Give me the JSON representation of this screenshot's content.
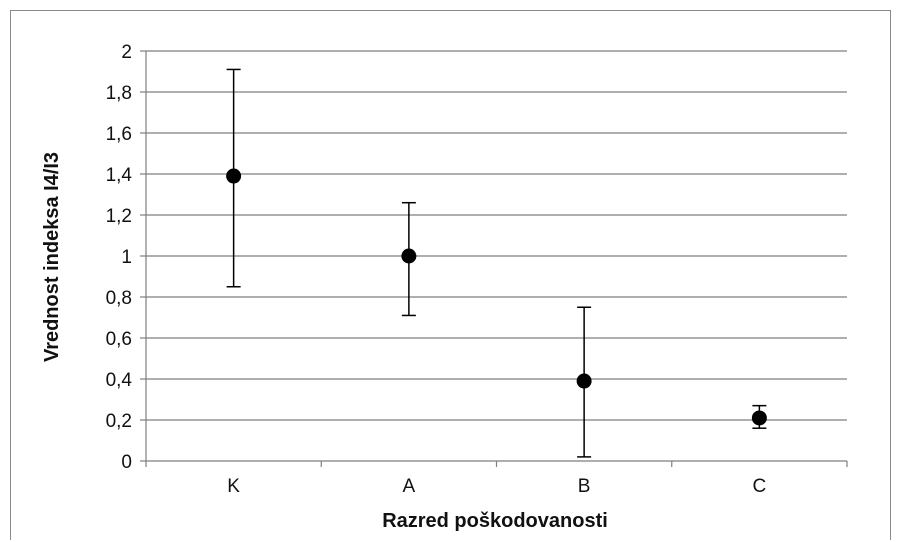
{
  "chart_data": {
    "type": "scatter",
    "title": "",
    "xlabel": "Razred poškodovanosti",
    "ylabel": "Vrednost indeksa  I4/I3",
    "categories": [
      "K",
      "A",
      "B",
      "C"
    ],
    "ylim": [
      0,
      2
    ],
    "ytick_values": [
      0,
      0.2,
      0.4,
      0.6,
      0.8,
      1,
      1.2,
      1.4,
      1.6,
      1.8,
      2
    ],
    "ytick_labels": [
      "0",
      "0,2",
      "0,4",
      "0,6",
      "0,8",
      "1",
      "1,2",
      "1,4",
      "1,6",
      "1,8",
      "2"
    ],
    "grid": true,
    "legend": "none",
    "series": [
      {
        "values": [
          1.39,
          1.0,
          0.39,
          0.21
        ],
        "error_low": [
          0.85,
          0.71,
          0.02,
          0.16
        ],
        "error_high": [
          1.91,
          1.26,
          0.75,
          0.27
        ],
        "marker_color": "#000000"
      }
    ]
  }
}
